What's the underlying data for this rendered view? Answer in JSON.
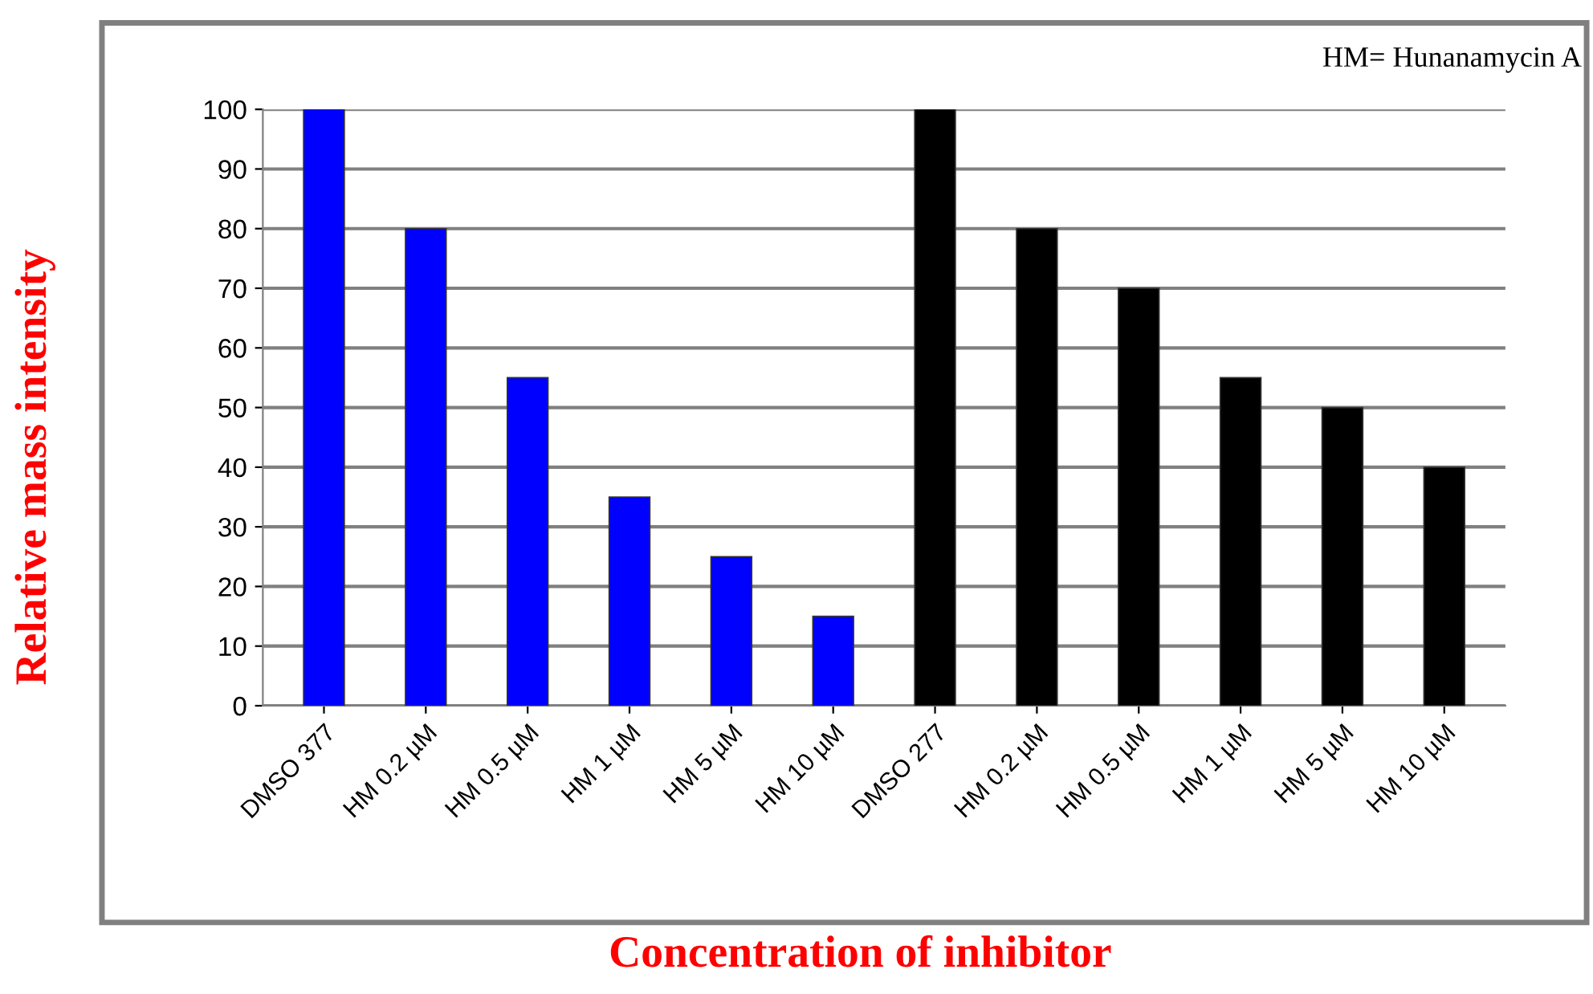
{
  "chart_data": {
    "type": "bar",
    "xlabel": "Concentration of inhibitor",
    "ylabel": "Relative mass intensity",
    "annotations": [
      "HM= Hunanamycin A"
    ],
    "categories": [
      "DMSO 377",
      "HM 0.2 µM",
      "HM 0.5 µM",
      "HM 1 µM",
      "HM 5 µM",
      "HM 10 µM",
      "DMSO 277",
      "HM 0.2 µM",
      "HM 0.5 µM",
      "HM 1 µM",
      "HM 5 µM",
      "HM 10 µM"
    ],
    "values": [
      100,
      80,
      55,
      35,
      25,
      15,
      100,
      80,
      70,
      55,
      50,
      40
    ],
    "colors": [
      "#0000ff",
      "#0000ff",
      "#0000ff",
      "#0000ff",
      "#0000ff",
      "#0000ff",
      "#000000",
      "#000000",
      "#000000",
      "#000000",
      "#000000",
      "#000000"
    ],
    "ylim": [
      0,
      100
    ],
    "yticks": [
      0,
      10,
      20,
      30,
      40,
      50,
      60,
      70,
      80,
      90,
      100
    ],
    "grid": "y",
    "legend": false
  }
}
